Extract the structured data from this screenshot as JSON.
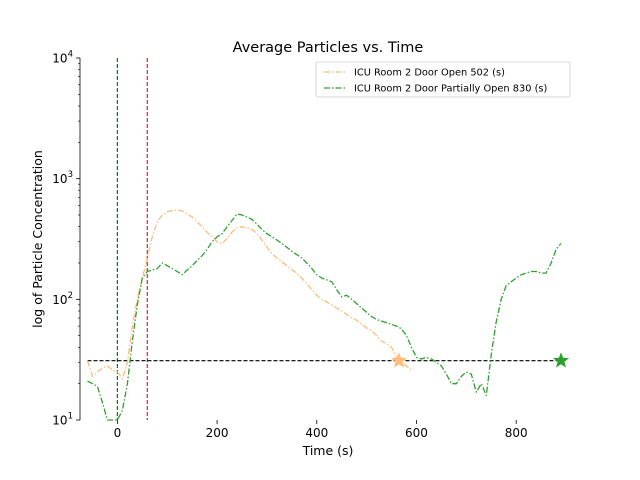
{
  "chart_data": {
    "type": "line",
    "title": "Average Particles vs. Time",
    "xlabel": "Time (s)",
    "ylabel": "log of Particle Concentration",
    "xlim": [
      -75,
      920
    ],
    "ylim": [
      10,
      10000
    ],
    "y_scale": "log",
    "x_ticks": [
      0,
      200,
      400,
      600,
      800
    ],
    "x_tick_labels": [
      "0",
      "200",
      "400",
      "600",
      "800"
    ],
    "y_ticks": [
      10,
      100,
      1000,
      10000
    ],
    "y_tick_labels": [
      {
        "base": "10",
        "exp": "1"
      },
      {
        "base": "10",
        "exp": "2"
      },
      {
        "base": "10",
        "exp": "3"
      },
      {
        "base": "10",
        "exp": "4"
      }
    ],
    "grid": false,
    "legend": "top-right",
    "vlines": [
      {
        "x": 0,
        "color": "#008000"
      },
      {
        "x": 60,
        "color": "#d62728"
      }
    ],
    "hline": {
      "y": 31,
      "x_start": -60,
      "x_end": 890,
      "color": "#000000"
    },
    "series": [
      {
        "name": "ICU Room 2 Door Open 502 (s)",
        "color": "#ffbb78",
        "x": [
          -60,
          -50,
          -40,
          -30,
          -20,
          -10,
          0,
          10,
          20,
          30,
          40,
          50,
          60,
          70,
          80,
          90,
          100,
          110,
          120,
          130,
          140,
          150,
          160,
          170,
          180,
          190,
          200,
          210,
          220,
          230,
          240,
          250,
          260,
          270,
          280,
          290,
          300,
          310,
          320,
          330,
          340,
          350,
          360,
          370,
          380,
          390,
          400,
          410,
          420,
          430,
          440,
          450,
          460,
          470,
          480,
          490,
          500,
          510,
          520,
          530,
          540,
          550,
          560,
          570,
          580,
          590
        ],
        "y": [
          31,
          23,
          25,
          27,
          28,
          26,
          25,
          22,
          30,
          60,
          100,
          150,
          220,
          330,
          440,
          500,
          530,
          545,
          550,
          540,
          510,
          480,
          440,
          400,
          360,
          330,
          300,
          290,
          320,
          360,
          390,
          400,
          390,
          380,
          350,
          310,
          270,
          240,
          220,
          205,
          190,
          175,
          165,
          150,
          135,
          120,
          108,
          100,
          95,
          90,
          85,
          80,
          75,
          70,
          67,
          62,
          58,
          55,
          50,
          45,
          43,
          40,
          33,
          30,
          28,
          26
        ]
      },
      {
        "name": "ICU Room 2 Door Partially Open 830 (s)",
        "color": "#2ca02c",
        "x": [
          -60,
          -50,
          -40,
          -30,
          -20,
          -10,
          0,
          10,
          20,
          30,
          40,
          50,
          60,
          70,
          80,
          90,
          100,
          110,
          120,
          130,
          140,
          150,
          160,
          170,
          180,
          190,
          200,
          210,
          220,
          230,
          240,
          250,
          260,
          270,
          280,
          290,
          300,
          310,
          320,
          330,
          340,
          350,
          360,
          370,
          380,
          390,
          400,
          410,
          420,
          430,
          440,
          450,
          460,
          470,
          480,
          490,
          500,
          510,
          520,
          530,
          540,
          550,
          560,
          570,
          580,
          590,
          600,
          610,
          620,
          630,
          640,
          650,
          660,
          670,
          680,
          690,
          700,
          710,
          720,
          730,
          740,
          750,
          760,
          770,
          780,
          790,
          800,
          810,
          820,
          830,
          840,
          850,
          860,
          870,
          880,
          890
        ],
        "y": [
          21,
          20,
          19,
          14,
          10,
          10,
          10,
          12,
          20,
          45,
          90,
          150,
          170,
          175,
          180,
          200,
          190,
          180,
          170,
          160,
          175,
          190,
          210,
          230,
          260,
          300,
          330,
          350,
          400,
          450,
          510,
          500,
          480,
          460,
          420,
          380,
          350,
          330,
          310,
          290,
          270,
          250,
          235,
          220,
          200,
          180,
          160,
          150,
          145,
          140,
          120,
          105,
          108,
          100,
          92,
          85,
          78,
          72,
          68,
          66,
          64,
          62,
          60,
          57,
          50,
          40,
          33,
          32,
          33,
          32,
          30,
          28,
          24,
          20,
          20,
          23,
          25,
          24,
          17,
          20,
          16,
          35,
          65,
          100,
          130,
          140,
          150,
          160,
          165,
          170,
          170,
          165,
          165,
          200,
          260,
          290
        ]
      }
    ],
    "markers": [
      {
        "series": "ICU Room 2 Door Open 502 (s)",
        "x": 565,
        "y": 31,
        "color": "#ffbb78"
      },
      {
        "series": "ICU Room 2 Door Partially Open 830 (s)",
        "x": 890,
        "y": 31,
        "color": "#2ca02c"
      }
    ]
  }
}
